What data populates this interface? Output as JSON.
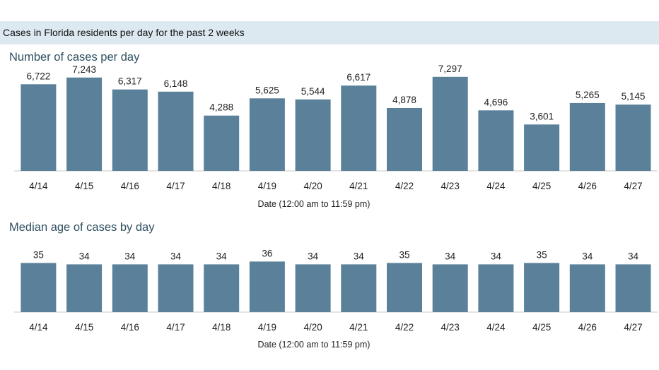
{
  "header": {
    "title": "Cases in Florida residents per day for the past 2 weeks"
  },
  "colors": {
    "bar": "#5a8199",
    "banner": "#dde9f1",
    "subtitle": "#2f4f61"
  },
  "chart_data": [
    {
      "type": "bar",
      "title": "Number of cases per day",
      "xlabel": "Date (12:00 am to 11:59 pm)",
      "ylabel": "",
      "categories": [
        "4/14",
        "4/15",
        "4/16",
        "4/17",
        "4/18",
        "4/19",
        "4/20",
        "4/21",
        "4/22",
        "4/23",
        "4/24",
        "4/25",
        "4/26",
        "4/27"
      ],
      "values": [
        6722,
        7243,
        6317,
        6148,
        4288,
        5625,
        5544,
        6617,
        4878,
        7297,
        4696,
        3601,
        5265,
        5145
      ],
      "value_labels": [
        "6,722",
        "7,243",
        "6,317",
        "6,148",
        "4,288",
        "5,625",
        "5,544",
        "6,617",
        "4,878",
        "7,297",
        "4,696",
        "3,601",
        "5,265",
        "5,145"
      ],
      "ylim": [
        0,
        8000
      ],
      "grid": false
    },
    {
      "type": "bar",
      "title": "Median age of cases by day",
      "xlabel": "Date (12:00 am to 11:59 pm)",
      "ylabel": "",
      "categories": [
        "4/14",
        "4/15",
        "4/16",
        "4/17",
        "4/18",
        "4/19",
        "4/20",
        "4/21",
        "4/22",
        "4/23",
        "4/24",
        "4/25",
        "4/26",
        "4/27"
      ],
      "values": [
        35,
        34,
        34,
        34,
        34,
        36,
        34,
        34,
        35,
        34,
        34,
        35,
        34,
        34
      ],
      "value_labels": [
        "35",
        "34",
        "34",
        "34",
        "34",
        "36",
        "34",
        "34",
        "35",
        "34",
        "34",
        "35",
        "34",
        "34"
      ],
      "ylim": [
        0,
        40
      ],
      "grid": false
    }
  ]
}
